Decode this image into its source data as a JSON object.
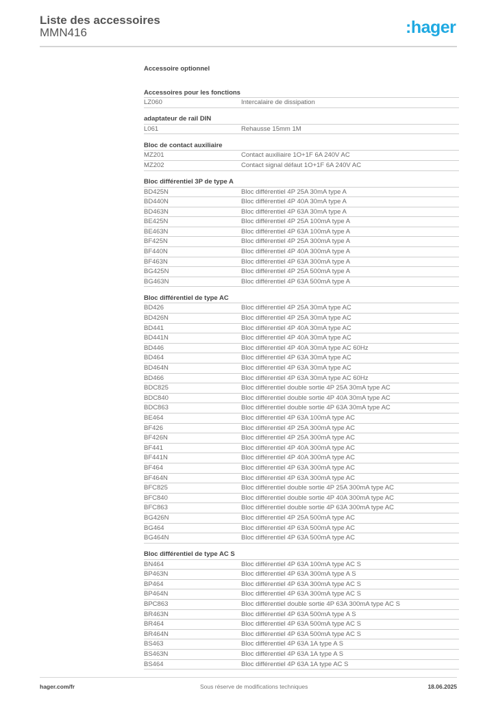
{
  "header": {
    "title": "Liste des accessoires",
    "subtitle": "MMN416",
    "logo": ":hager",
    "brand_color": "#1fa9e1"
  },
  "main_heading": "Accessoire optionnel",
  "sections": [
    {
      "title": "Accessoires pour les fonctions",
      "rows": [
        [
          "LZ060",
          "Intercalaire de dissipation"
        ]
      ]
    },
    {
      "title": "adaptateur de rail DIN",
      "rows": [
        [
          "L061",
          "Rehausse 15mm 1M"
        ]
      ]
    },
    {
      "title": "Bloc de contact auxiliaire",
      "rows": [
        [
          "MZ201",
          "Contact auxiliaire 1O+1F 6A 240V AC"
        ],
        [
          "MZ202",
          "Contact signal défaut 1O+1F 6A 240V AC"
        ]
      ]
    },
    {
      "title": "Bloc différentiel 3P de type A",
      "rows": [
        [
          "BD425N",
          "Bloc différentiel 4P 25A 30mA type A"
        ],
        [
          "BD440N",
          "Bloc différentiel 4P 40A 30mA type A"
        ],
        [
          "BD463N",
          "Bloc différentiel 4P 63A 30mA type A"
        ],
        [
          "BE425N",
          "Bloc différentiel 4P 25A 100mA type A"
        ],
        [
          "BE463N",
          "Bloc différentiel 4P 63A 100mA type A"
        ],
        [
          "BF425N",
          "Bloc différentiel 4P 25A 300mA type A"
        ],
        [
          "BF440N",
          "Bloc différentiel 4P 40A 300mA type A"
        ],
        [
          "BF463N",
          "Bloc différentiel 4P 63A 300mA type A"
        ],
        [
          "BG425N",
          "Bloc différentiel 4P 25A 500mA type A"
        ],
        [
          "BG463N",
          "Bloc différentiel 4P 63A 500mA type A"
        ]
      ]
    },
    {
      "title": "Bloc différentiel de type AC",
      "rows": [
        [
          "BD426",
          "Bloc différentiel 4P 25A 30mA type AC"
        ],
        [
          "BD426N",
          "Bloc différentiel 4P 25A 30mA type AC"
        ],
        [
          "BD441",
          "Bloc différentiel 4P 40A 30mA type AC"
        ],
        [
          "BD441N",
          "Bloc différentiel 4P 40A 30mA type AC"
        ],
        [
          "BD446",
          "Bloc différentiel 4P 40A 30mA type AC 60Hz"
        ],
        [
          "BD464",
          "Bloc différentiel 4P 63A 30mA type AC"
        ],
        [
          "BD464N",
          "Bloc différentiel 4P 63A 30mA type AC"
        ],
        [
          "BD466",
          "Bloc différentiel 4P 63A 30mA type AC 60Hz"
        ],
        [
          "BDC825",
          "Bloc différentiel double sortie 4P 25A 30mA type AC"
        ],
        [
          "BDC840",
          "Bloc différentiel double sortie 4P 40A 30mA type AC"
        ],
        [
          "BDC863",
          "Bloc différentiel double sortie 4P 63A 30mA type AC"
        ],
        [
          "BE464",
          "Bloc différentiel 4P 63A 100mA type AC"
        ],
        [
          "BF426",
          "Bloc différentiel 4P 25A 300mA type AC"
        ],
        [
          "BF426N",
          "Bloc différentiel 4P 25A 300mA type AC"
        ],
        [
          "BF441",
          "Bloc différentiel 4P 40A 300mA type AC"
        ],
        [
          "BF441N",
          "Bloc différentiel 4P 40A 300mA type AC"
        ],
        [
          "BF464",
          "Bloc différentiel 4P 63A 300mA type AC"
        ],
        [
          "BF464N",
          "Bloc différentiel 4P 63A 300mA type AC"
        ],
        [
          "BFC825",
          "Bloc différentiel double sortie 4P 25A 300mA type AC"
        ],
        [
          "BFC840",
          "Bloc différentiel double sortie 4P 40A 300mA type AC"
        ],
        [
          "BFC863",
          "Bloc différentiel double sortie 4P 63A 300mA type AC"
        ],
        [
          "BG426N",
          "Bloc différentiel 4P 25A 500mA type AC"
        ],
        [
          "BG464",
          "Bloc différentiel 4P 63A 500mA type AC"
        ],
        [
          "BG464N",
          "Bloc différentiel 4P 63A 500mA type AC"
        ]
      ]
    },
    {
      "title": "Bloc différentiel de type AC S",
      "rows": [
        [
          "BN464",
          "Bloc différentiel 4P 63A 100mA type AC S"
        ],
        [
          "BP463N",
          "Bloc différentiel 4P 63A 300mA type A S"
        ],
        [
          "BP464",
          "Bloc différentiel 4P 63A 300mA type AC S"
        ],
        [
          "BP464N",
          "Bloc différentiel 4P 63A 300mA type AC S"
        ],
        [
          "BPC863",
          "Bloc différentiel double sortie 4P 63A 300mA type AC S"
        ],
        [
          "BR463N",
          "Bloc différentiel 4P 63A 500mA type A S"
        ],
        [
          "BR464",
          "Bloc différentiel 4P 63A 500mA type AC S"
        ],
        [
          "BR464N",
          "Bloc différentiel 4P 63A 500mA type AC S"
        ],
        [
          "BS463",
          "Bloc différentiel 4P 63A 1A type A S"
        ],
        [
          "BS463N",
          "Bloc différentiel 4P 63A 1A type A S"
        ],
        [
          "BS464",
          "Bloc différentiel 4P 63A 1A type AC S"
        ]
      ]
    }
  ],
  "footer": {
    "website": "hager.com/fr",
    "notice": "Sous réserve de modifications techniques",
    "date": "18.06.2025"
  }
}
